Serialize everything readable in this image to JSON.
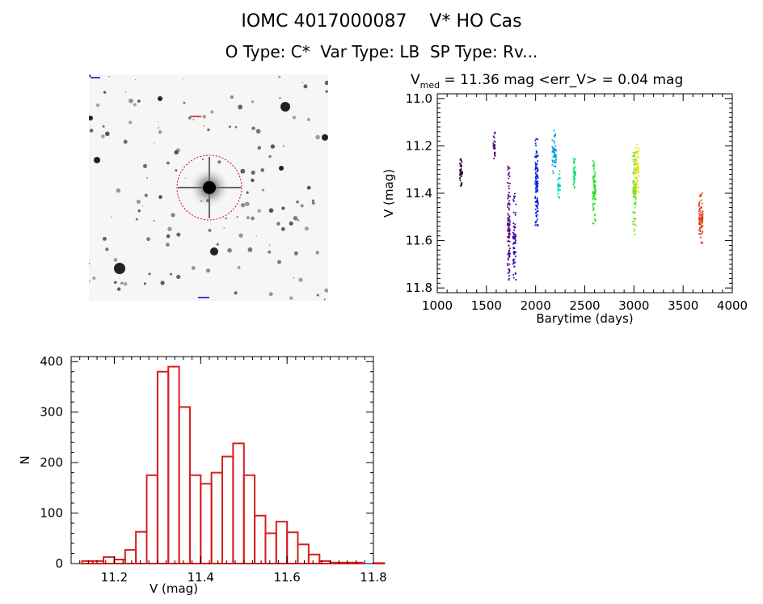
{
  "header": {
    "title": "IOMC 4017000087    V* HO Cas",
    "subtitle": "O Type: C*  Var Type: LB  SP Type: Rv..."
  },
  "colors": {
    "hist_bar": "#d42020",
    "target_circle": "#dd0000",
    "series": [
      "#2a0a40",
      "#4a0a6a",
      "#5a0a9a",
      "#3a0aa0",
      "#0a20e0",
      "#0aa0e0",
      "#00d0c0",
      "#10e060",
      "#20e020",
      "#80e020",
      "#e8e000",
      "#e04010"
    ]
  },
  "chart_data": [
    {
      "type": "scatter",
      "title": "V_med = 11.36 mag <err_V> = 0.04 mag",
      "title_parts": {
        "prefix": "V",
        "sub": "med",
        "rest": " = 11.36 mag <err_V> = 0.04 mag"
      },
      "xlabel": "Barytime (days)",
      "ylabel": "V (mag)",
      "xlim": [
        1000,
        4000
      ],
      "ylim": [
        11.82,
        10.98
      ],
      "y_inverted": true,
      "xticks": [
        1000,
        1500,
        2000,
        2500,
        3000,
        3500,
        4000
      ],
      "yticks": [
        11.0,
        11.2,
        11.4,
        11.6,
        11.8
      ],
      "ytick_labels": [
        "11.0",
        "11.2",
        "11.4",
        "11.6",
        "11.8"
      ],
      "grid": false,
      "clusters": [
        {
          "x": [
            1230,
            1255
          ],
          "y": [
            11.25,
            11.37
          ],
          "color": "#2a0a40",
          "n": 40
        },
        {
          "x": [
            1570,
            1590
          ],
          "y": [
            11.14,
            11.26
          ],
          "color": "#4a0a6a",
          "n": 30
        },
        {
          "x": [
            1715,
            1740
          ],
          "y": [
            11.28,
            11.78
          ],
          "color": "#5a0a9a",
          "n": 120
        },
        {
          "x": [
            1770,
            1800
          ],
          "y": [
            11.4,
            11.77
          ],
          "color": "#3a0aa0",
          "n": 70
        },
        {
          "x": [
            1995,
            2025
          ],
          "y": [
            11.17,
            11.55
          ],
          "color": "#0a20e0",
          "n": 120
        },
        {
          "x": [
            2170,
            2210
          ],
          "y": [
            11.12,
            11.32
          ],
          "color": "#0aa0e0",
          "n": 60
        },
        {
          "x": [
            2225,
            2250
          ],
          "y": [
            11.3,
            11.44
          ],
          "color": "#00d0c0",
          "n": 25
        },
        {
          "x": [
            2385,
            2405
          ],
          "y": [
            11.23,
            11.39
          ],
          "color": "#10e060",
          "n": 40
        },
        {
          "x": [
            2580,
            2610
          ],
          "y": [
            11.26,
            11.53
          ],
          "color": "#20e020",
          "n": 80
        },
        {
          "x": [
            2990,
            3020
          ],
          "y": [
            11.2,
            11.58
          ],
          "color": "#80e020",
          "n": 100
        },
        {
          "x": [
            3020,
            3050
          ],
          "y": [
            11.19,
            11.4
          ],
          "color": "#e8e000",
          "n": 60
        },
        {
          "x": [
            3660,
            3700
          ],
          "y": [
            11.4,
            11.62
          ],
          "color": "#e04010",
          "n": 90
        }
      ]
    },
    {
      "type": "bar",
      "subtype": "histogram",
      "xlabel": "V (mag)",
      "ylabel": "N",
      "xlim": [
        11.1,
        11.8
      ],
      "ylim": [
        0,
        410
      ],
      "xticks": [
        11.2,
        11.4,
        11.6,
        11.8
      ],
      "xtick_labels": [
        "11.2",
        "11.4",
        "11.6",
        "11.8"
      ],
      "yticks": [
        0,
        100,
        200,
        300,
        400
      ],
      "ytick_labels": [
        "0",
        "100",
        "200",
        "300",
        "400"
      ],
      "bins_start": 11.125,
      "bin_width": 0.025,
      "values": [
        5,
        5,
        13,
        8,
        27,
        63,
        175,
        380,
        390,
        310,
        175,
        158,
        180,
        212,
        238,
        175,
        95,
        60,
        83,
        62,
        38,
        18,
        5,
        2,
        2,
        2,
        0,
        1
      ],
      "grid": false
    }
  ]
}
